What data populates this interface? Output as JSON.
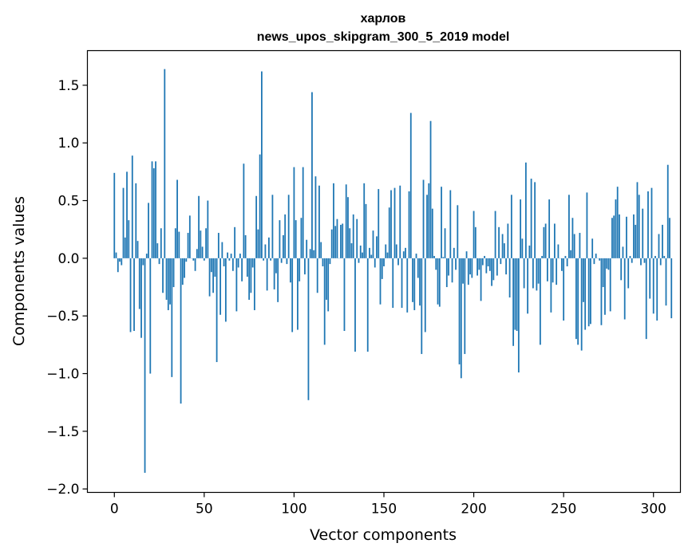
{
  "chart_data": {
    "type": "bar",
    "title_line1": "харлов",
    "title_line2": "news_upos_skipgram_300_5_2019 model",
    "xlabel": "Vector components",
    "ylabel": "Components values",
    "xlim": [
      -15,
      315
    ],
    "ylim": [
      -2.03,
      1.8
    ],
    "xticks": [
      0,
      50,
      100,
      150,
      200,
      250,
      300
    ],
    "xtick_labels": [
      "0",
      "50",
      "100",
      "150",
      "200",
      "250",
      "300"
    ],
    "yticks": [
      -2.0,
      -1.5,
      -1.0,
      -0.5,
      0.0,
      0.5,
      1.0,
      1.5
    ],
    "ytick_labels": [
      "−2.0",
      "−1.5",
      "−1.0",
      "−0.5",
      "0.0",
      "0.5",
      "1.0",
      "1.5"
    ],
    "bar_color": "#1f77b4",
    "grid": false,
    "values": [
      0.74,
      0.05,
      -0.12,
      -0.03,
      -0.06,
      0.61,
      0.18,
      0.75,
      0.33,
      -0.64,
      0.89,
      -0.63,
      0.65,
      0.15,
      -0.44,
      -0.69,
      -0.06,
      -1.86,
      0.04,
      0.48,
      -1.0,
      0.84,
      0.78,
      0.84,
      0.13,
      -0.05,
      0.26,
      -0.3,
      1.64,
      -0.36,
      -0.45,
      -0.4,
      -1.03,
      -0.25,
      0.26,
      0.68,
      0.23,
      -1.26,
      -0.23,
      -0.17,
      -0.03,
      0.22,
      0.37,
      0.0,
      -0.02,
      -0.11,
      0.08,
      0.54,
      0.24,
      0.1,
      -0.02,
      0.26,
      0.5,
      -0.33,
      -0.12,
      -0.3,
      -0.16,
      -0.9,
      0.22,
      -0.49,
      0.14,
      -0.07,
      -0.55,
      0.05,
      -0.02,
      0.04,
      -0.11,
      0.27,
      -0.46,
      -0.08,
      0.04,
      -0.2,
      0.82,
      0.2,
      -0.16,
      -0.36,
      -0.3,
      -0.08,
      -0.45,
      0.54,
      0.25,
      0.9,
      1.62,
      -0.02,
      0.12,
      -0.28,
      0.18,
      -0.02,
      0.55,
      -0.27,
      -0.13,
      -0.38,
      0.33,
      -0.04,
      0.2,
      0.38,
      -0.05,
      0.55,
      -0.21,
      -0.64,
      0.79,
      0.33,
      -0.62,
      -0.2,
      0.35,
      0.79,
      -0.14,
      0.16,
      -1.23,
      0.08,
      1.44,
      0.07,
      0.71,
      -0.3,
      0.63,
      0.14,
      -0.07,
      -0.75,
      -0.36,
      -0.46,
      -0.05,
      0.25,
      0.65,
      0.28,
      0.34,
      0.0,
      0.29,
      0.3,
      -0.63,
      0.64,
      0.53,
      0.26,
      0.13,
      0.38,
      -0.81,
      0.34,
      -0.04,
      0.11,
      0.05,
      0.65,
      0.47,
      -0.81,
      0.09,
      0.03,
      0.24,
      -0.08,
      0.19,
      0.6,
      -0.4,
      -0.18,
      -0.07,
      0.12,
      0.05,
      0.44,
      0.59,
      -0.43,
      0.61,
      0.12,
      -0.06,
      0.63,
      -0.43,
      0.06,
      0.09,
      -0.47,
      0.58,
      1.26,
      -0.38,
      -0.45,
      0.04,
      -0.17,
      -0.41,
      -0.83,
      0.68,
      -0.64,
      0.55,
      0.65,
      1.19,
      0.43,
      0.02,
      -0.1,
      -0.4,
      -0.42,
      0.62,
      0.01,
      0.26,
      -0.25,
      -0.15,
      0.59,
      -0.21,
      0.09,
      -0.1,
      0.46,
      -0.92,
      -1.04,
      -0.22,
      -0.83,
      0.06,
      -0.23,
      -0.14,
      -0.17,
      0.41,
      0.27,
      -0.15,
      -0.1,
      -0.37,
      -0.06,
      0.02,
      -0.13,
      -0.07,
      -0.11,
      -0.24,
      -0.19,
      0.41,
      -0.15,
      0.27,
      -0.05,
      0.21,
      0.13,
      -0.14,
      0.3,
      -0.34,
      0.55,
      -0.76,
      -0.62,
      -0.63,
      -0.99,
      0.51,
      0.17,
      -0.26,
      0.83,
      -0.48,
      0.11,
      0.69,
      -0.26,
      0.66,
      -0.28,
      -0.22,
      -0.75,
      0.02,
      0.27,
      0.3,
      -0.2,
      0.51,
      -0.47,
      -0.21,
      0.3,
      -0.23,
      0.12,
      0.0,
      -0.11,
      -0.54,
      0.02,
      -0.07,
      0.55,
      0.07,
      0.35,
      0.21,
      -0.7,
      -0.75,
      0.22,
      -0.8,
      -0.38,
      -0.62,
      0.57,
      -0.59,
      -0.57,
      0.17,
      -0.05,
      0.04,
      0.0,
      -0.02,
      -0.58,
      -0.25,
      -0.49,
      -0.09,
      -0.1,
      -0.46,
      0.35,
      0.37,
      0.51,
      0.62,
      0.38,
      -0.19,
      0.1,
      -0.53,
      0.36,
      -0.26,
      0.02,
      -0.04,
      0.38,
      0.29,
      0.66,
      0.55,
      -0.06,
      0.43,
      -0.04,
      -0.7,
      0.58,
      -0.35,
      0.61,
      -0.48,
      0.02,
      -0.54,
      0.21,
      -0.06,
      0.29,
      0.02,
      -0.41,
      0.81,
      0.35,
      -0.52
    ]
  }
}
